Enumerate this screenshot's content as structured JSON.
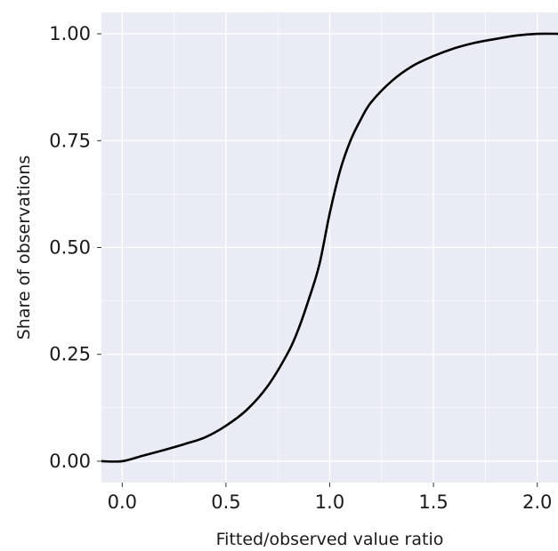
{
  "chart_data": {
    "type": "line",
    "title": "",
    "xlabel": "Fitted/observed value ratio",
    "ylabel": "Share of observations",
    "xlim": [
      -0.1,
      2.1
    ],
    "ylim": [
      -0.05,
      1.05
    ],
    "x_ticks": [
      0.0,
      0.5,
      1.0,
      1.5,
      2.0
    ],
    "x_tick_labels": [
      "0.0",
      "0.5",
      "1.0",
      "1.5",
      "2.0"
    ],
    "y_ticks": [
      0.0,
      0.25,
      0.5,
      0.75,
      1.0
    ],
    "y_tick_labels": [
      "0.00",
      "0.25",
      "0.50",
      "0.75",
      "1.00"
    ],
    "grid": true,
    "colors": {
      "panel": "#e9ecf5",
      "grid": "#ffffff",
      "line": "#000000"
    },
    "series": [
      {
        "x": [
          -0.1,
          0.0,
          0.1,
          0.2,
          0.3,
          0.4,
          0.5,
          0.6,
          0.7,
          0.8,
          0.85,
          0.9,
          0.95,
          1.0,
          1.05,
          1.1,
          1.15,
          1.2,
          1.3,
          1.4,
          1.5,
          1.6,
          1.7,
          1.8,
          1.9,
          2.0,
          2.1
        ],
        "y": [
          0.0,
          0.0,
          0.013,
          0.026,
          0.04,
          0.056,
          0.083,
          0.12,
          0.175,
          0.255,
          0.31,
          0.38,
          0.46,
          0.58,
          0.68,
          0.75,
          0.8,
          0.84,
          0.89,
          0.925,
          0.948,
          0.966,
          0.979,
          0.988,
          0.996,
          1.0,
          1.0
        ]
      }
    ]
  }
}
